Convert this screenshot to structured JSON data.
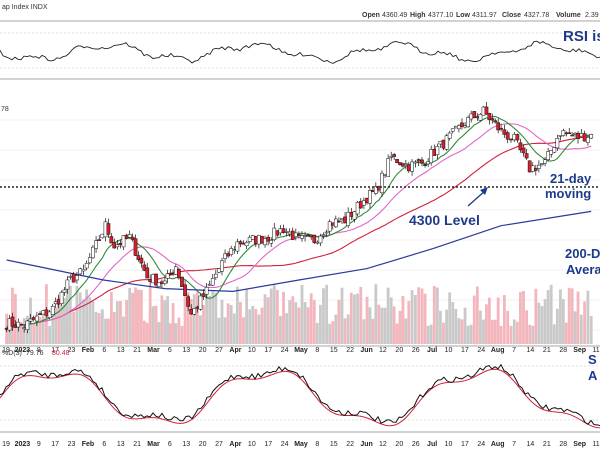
{
  "header": {
    "title": "ap Index INDX",
    "ohlc": [
      {
        "label": "Open",
        "value": "4360.49"
      },
      {
        "label": "High",
        "value": "4377.10"
      },
      {
        "label": "Low",
        "value": "4311.97"
      },
      {
        "label": "Close",
        "value": "4327.78"
      },
      {
        "label": "Volume",
        "value": "2.39"
      }
    ]
  },
  "price_axis_label": "78",
  "stoch_legend": {
    "prefix": "%D(3) ",
    "k": "79.76",
    "d": "80.48"
  },
  "annotations": {
    "rsi": "RSI is",
    "ma21_line1": "21-day",
    "ma21_line2": "moving",
    "level4300": "4300 Level",
    "ma200_line1": "200-D",
    "ma200_line2": "Avera",
    "stoch_line1": "S",
    "stoch_line2": "A"
  },
  "colors": {
    "up": "#ffffff",
    "down": "#d61f2b",
    "ma21": "#2e8b3a",
    "ma50_pink": "#e066c8",
    "ma_red": "#d0213a",
    "ma200": "#2a3a9c",
    "annotation": "#1e3a8a",
    "k_line": "#111111",
    "d_line": "#d0213a"
  },
  "x_axis": {
    "labels": [
      "19",
      "2023",
      "9",
      "17",
      "23",
      "Feb",
      "6",
      "13",
      "21",
      "Mar",
      "6",
      "13",
      "20",
      "27",
      "Apr",
      "10",
      "17",
      "24",
      "May",
      "8",
      "15",
      "22",
      "Jun",
      "12",
      "20",
      "26",
      "Jul",
      "10",
      "17",
      "24",
      "Aug",
      "7",
      "14",
      "21",
      "28",
      "Sep",
      "11"
    ]
  },
  "chart_data": {
    "type": "candlestick",
    "title": "",
    "level_line": {
      "name": "4300 Level",
      "value": 4300
    },
    "price_range_estimate": [
      3780,
      4620
    ],
    "price_series": [
      {
        "d": "2022-12-19",
        "c": 3840
      },
      {
        "d": "2022-12-27",
        "c": 3830
      },
      {
        "d": "2023-01-09",
        "c": 3890
      },
      {
        "d": "2023-01-17",
        "c": 3990
      },
      {
        "d": "2023-01-23",
        "c": 4020
      },
      {
        "d": "2023-02-02",
        "c": 4180
      },
      {
        "d": "2023-02-06",
        "c": 4110
      },
      {
        "d": "2023-02-13",
        "c": 4140
      },
      {
        "d": "2023-02-21",
        "c": 4000
      },
      {
        "d": "2023-03-01",
        "c": 3980
      },
      {
        "d": "2023-03-06",
        "c": 4040
      },
      {
        "d": "2023-03-13",
        "c": 3870
      },
      {
        "d": "2023-03-20",
        "c": 3950
      },
      {
        "d": "2023-03-27",
        "c": 4050
      },
      {
        "d": "2023-04-03",
        "c": 4120
      },
      {
        "d": "2023-04-10",
        "c": 4130
      },
      {
        "d": "2023-04-17",
        "c": 4140
      },
      {
        "d": "2023-04-24",
        "c": 4170
      },
      {
        "d": "2023-05-01",
        "c": 4130
      },
      {
        "d": "2023-05-08",
        "c": 4130
      },
      {
        "d": "2023-05-15",
        "c": 4190
      },
      {
        "d": "2023-05-22",
        "c": 4200
      },
      {
        "d": "2023-06-01",
        "c": 4280
      },
      {
        "d": "2023-06-05",
        "c": 4300
      },
      {
        "d": "2023-06-12",
        "c": 4420
      },
      {
        "d": "2023-06-20",
        "c": 4390
      },
      {
        "d": "2023-06-26",
        "c": 4400
      },
      {
        "d": "2023-07-03",
        "c": 4450
      },
      {
        "d": "2023-07-10",
        "c": 4500
      },
      {
        "d": "2023-07-17",
        "c": 4550
      },
      {
        "d": "2023-07-24",
        "c": 4580
      },
      {
        "d": "2023-08-01",
        "c": 4510
      },
      {
        "d": "2023-08-07",
        "c": 4480
      },
      {
        "d": "2023-08-14",
        "c": 4380
      },
      {
        "d": "2023-08-21",
        "c": 4400
      },
      {
        "d": "2023-08-28",
        "c": 4510
      },
      {
        "d": "2023-09-05",
        "c": 4490
      },
      {
        "d": "2023-09-11",
        "c": 4500
      }
    ],
    "moving_average_200": [
      {
        "d": "2022-12-19",
        "v": 4060
      },
      {
        "d": "2023-02-01",
        "v": 3990
      },
      {
        "d": "2023-03-01",
        "v": 3960
      },
      {
        "d": "2023-04-01",
        "v": 3950
      },
      {
        "d": "2023-05-01",
        "v": 3990
      },
      {
        "d": "2023-06-01",
        "v": 4030
      },
      {
        "d": "2023-07-01",
        "v": 4100
      },
      {
        "d": "2023-08-01",
        "v": 4180
      },
      {
        "d": "2023-09-11",
        "v": 4230
      }
    ],
    "stochastic": {
      "k": 79.76,
      "d": 80.48,
      "range": [
        0,
        100
      ]
    }
  }
}
